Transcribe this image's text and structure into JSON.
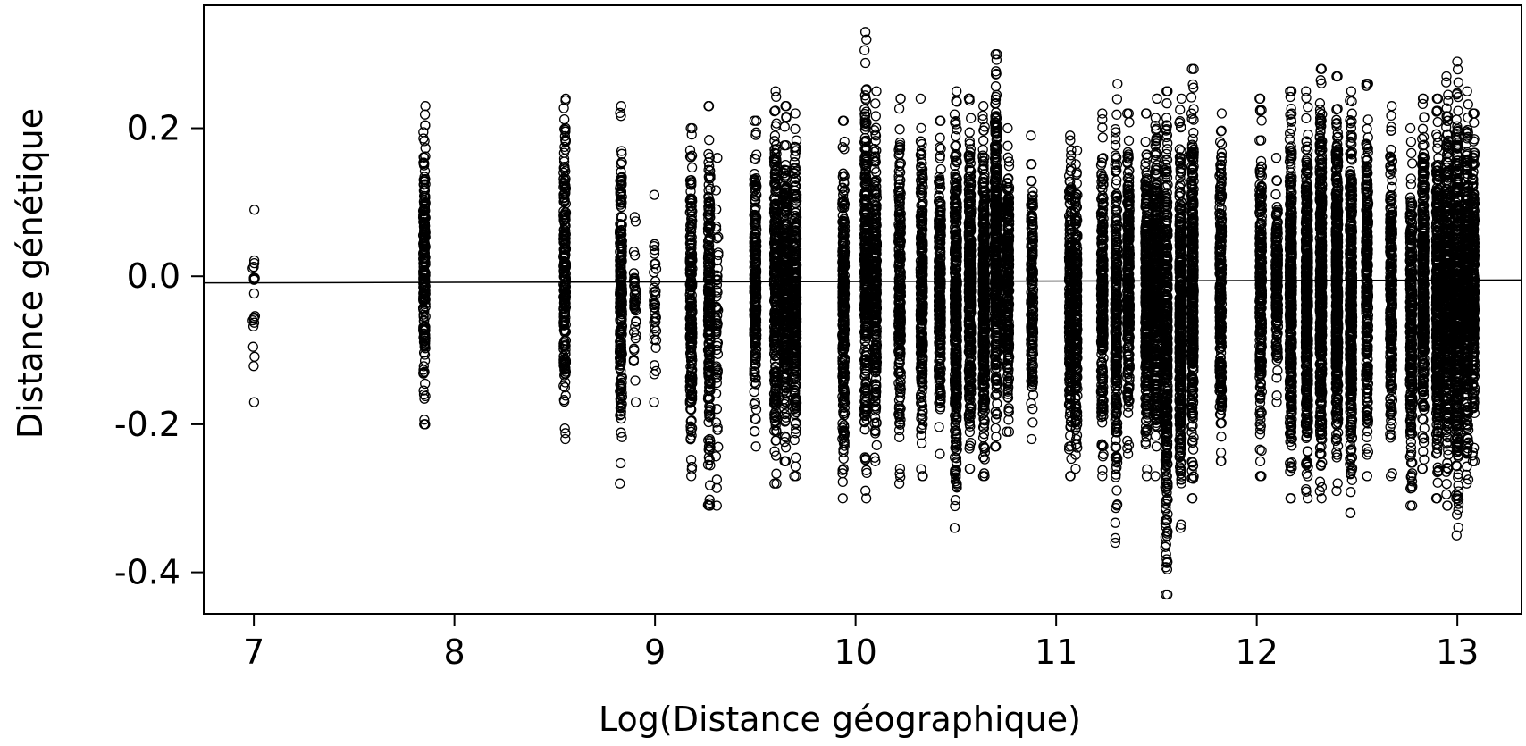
{
  "chart_data": {
    "type": "scatter",
    "title": "",
    "xlabel": "Log(Distance géographique)",
    "ylabel": "Distance génétique",
    "xlim": [
      6.75,
      13.32
    ],
    "ylim": [
      -0.456,
      0.366
    ],
    "x_ticks": [
      7,
      8,
      9,
      10,
      11,
      12,
      13
    ],
    "x_tick_labels": [
      "7",
      "8",
      "9",
      "10",
      "11",
      "12",
      "13"
    ],
    "y_ticks": [
      0.2,
      0.0,
      -0.2,
      -0.4
    ],
    "y_tick_labels": [
      "0.2",
      "0.0",
      "-0.2",
      "-0.4"
    ],
    "grid": false,
    "legend": "none",
    "marker": "open-circle",
    "colors": {
      "points": "#000000",
      "line": "#000000",
      "frame": "#000000",
      "background": "#ffffff"
    },
    "x_columns": [
      {
        "x": 7.0,
        "ymin": -0.17,
        "ymax": 0.09,
        "n": 20
      },
      {
        "x": 7.85,
        "ymin": -0.2,
        "ymax": 0.23,
        "n": 220
      },
      {
        "x": 8.55,
        "ymin": -0.22,
        "ymax": 0.24,
        "n": 240
      },
      {
        "x": 8.83,
        "ymin": -0.28,
        "ymax": 0.23,
        "n": 230
      },
      {
        "x": 8.9,
        "ymin": -0.17,
        "ymax": 0.08,
        "n": 40
      },
      {
        "x": 9.0,
        "ymin": -0.17,
        "ymax": 0.11,
        "n": 40
      },
      {
        "x": 9.18,
        "ymin": -0.27,
        "ymax": 0.2,
        "n": 240
      },
      {
        "x": 9.27,
        "ymin": -0.31,
        "ymax": 0.23,
        "n": 240
      },
      {
        "x": 9.31,
        "ymin": -0.31,
        "ymax": 0.16,
        "n": 60
      },
      {
        "x": 9.5,
        "ymin": -0.23,
        "ymax": 0.21,
        "n": 260
      },
      {
        "x": 9.6,
        "ymin": -0.28,
        "ymax": 0.25,
        "n": 320
      },
      {
        "x": 9.65,
        "ymin": -0.25,
        "ymax": 0.23,
        "n": 320
      },
      {
        "x": 9.7,
        "ymin": -0.27,
        "ymax": 0.22,
        "n": 320
      },
      {
        "x": 9.94,
        "ymin": -0.3,
        "ymax": 0.21,
        "n": 300
      },
      {
        "x": 10.05,
        "ymin": -0.3,
        "ymax": 0.33,
        "n": 340
      },
      {
        "x": 10.1,
        "ymin": -0.25,
        "ymax": 0.25,
        "n": 320
      },
      {
        "x": 10.22,
        "ymin": -0.28,
        "ymax": 0.24,
        "n": 260
      },
      {
        "x": 10.33,
        "ymin": -0.27,
        "ymax": 0.24,
        "n": 300
      },
      {
        "x": 10.42,
        "ymin": -0.24,
        "ymax": 0.21,
        "n": 300
      },
      {
        "x": 10.5,
        "ymin": -0.34,
        "ymax": 0.25,
        "n": 420
      },
      {
        "x": 10.57,
        "ymin": -0.26,
        "ymax": 0.24,
        "n": 420
      },
      {
        "x": 10.64,
        "ymin": -0.27,
        "ymax": 0.23,
        "n": 420
      },
      {
        "x": 10.7,
        "ymin": -0.23,
        "ymax": 0.3,
        "n": 420
      },
      {
        "x": 10.76,
        "ymin": -0.21,
        "ymax": 0.2,
        "n": 300
      },
      {
        "x": 10.88,
        "ymin": -0.22,
        "ymax": 0.19,
        "n": 200
      },
      {
        "x": 11.07,
        "ymin": -0.27,
        "ymax": 0.19,
        "n": 280
      },
      {
        "x": 11.1,
        "ymin": -0.26,
        "ymax": 0.17,
        "n": 240
      },
      {
        "x": 11.23,
        "ymin": -0.27,
        "ymax": 0.22,
        "n": 300
      },
      {
        "x": 11.3,
        "ymin": -0.36,
        "ymax": 0.26,
        "n": 320
      },
      {
        "x": 11.36,
        "ymin": -0.24,
        "ymax": 0.22,
        "n": 300
      },
      {
        "x": 11.45,
        "ymin": -0.27,
        "ymax": 0.22,
        "n": 360
      },
      {
        "x": 11.5,
        "ymin": -0.27,
        "ymax": 0.24,
        "n": 420
      },
      {
        "x": 11.55,
        "ymin": -0.43,
        "ymax": 0.25,
        "n": 420
      },
      {
        "x": 11.62,
        "ymin": -0.34,
        "ymax": 0.24,
        "n": 420
      },
      {
        "x": 11.68,
        "ymin": -0.3,
        "ymax": 0.28,
        "n": 420
      },
      {
        "x": 11.82,
        "ymin": -0.25,
        "ymax": 0.22,
        "n": 300
      },
      {
        "x": 12.02,
        "ymin": -0.27,
        "ymax": 0.24,
        "n": 280
      },
      {
        "x": 12.1,
        "ymin": -0.17,
        "ymax": 0.16,
        "n": 200
      },
      {
        "x": 12.17,
        "ymin": -0.3,
        "ymax": 0.25,
        "n": 420
      },
      {
        "x": 12.25,
        "ymin": -0.3,
        "ymax": 0.25,
        "n": 500
      },
      {
        "x": 12.32,
        "ymin": -0.3,
        "ymax": 0.28,
        "n": 500
      },
      {
        "x": 12.4,
        "ymin": -0.29,
        "ymax": 0.27,
        "n": 500
      },
      {
        "x": 12.47,
        "ymin": -0.32,
        "ymax": 0.25,
        "n": 460
      },
      {
        "x": 12.55,
        "ymin": -0.27,
        "ymax": 0.26,
        "n": 300
      },
      {
        "x": 12.67,
        "ymin": -0.27,
        "ymax": 0.23,
        "n": 280
      },
      {
        "x": 12.77,
        "ymin": -0.31,
        "ymax": 0.2,
        "n": 300
      },
      {
        "x": 12.83,
        "ymin": -0.26,
        "ymax": 0.24,
        "n": 360
      },
      {
        "x": 12.9,
        "ymin": -0.3,
        "ymax": 0.24,
        "n": 420
      },
      {
        "x": 12.95,
        "ymin": -0.31,
        "ymax": 0.27,
        "n": 420
      },
      {
        "x": 13.0,
        "ymin": -0.35,
        "ymax": 0.29,
        "n": 460
      },
      {
        "x": 13.05,
        "ymin": -0.28,
        "ymax": 0.25,
        "n": 420
      },
      {
        "x": 13.08,
        "ymin": -0.25,
        "ymax": 0.22,
        "n": 340
      }
    ],
    "regression_line": {
      "x": [
        6.75,
        13.32
      ],
      "y": [
        -0.009,
        -0.005
      ]
    }
  }
}
